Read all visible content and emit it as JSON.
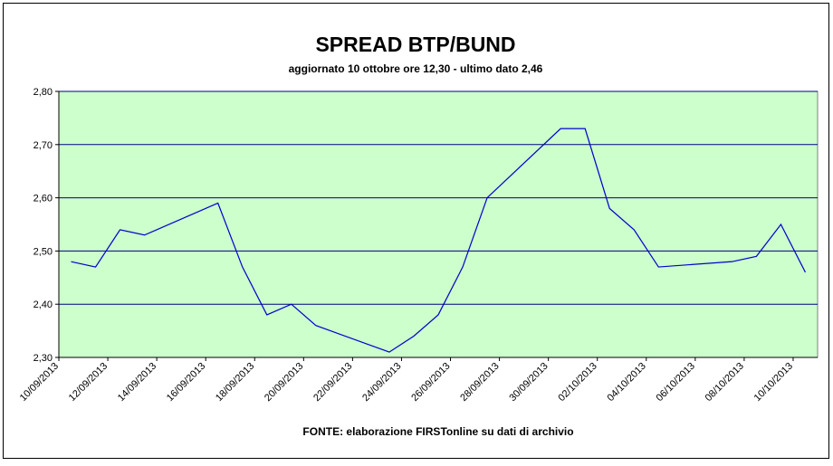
{
  "chart_data": {
    "type": "line",
    "title": "SPREAD BTP/BUND",
    "subtitle": "aggiornato 10 ottobre ore 12,30 - ultimo dato 2,46",
    "source": "FONTE:  elaborazione FIRSTonline su dati di archivio",
    "x": [
      "10/09/2013",
      "11/09/2013",
      "12/09/2013",
      "13/09/2013",
      "16/09/2013",
      "17/09/2013",
      "18/09/2013",
      "19/09/2013",
      "20/09/2013",
      "23/09/2013",
      "24/09/2013",
      "25/09/2013",
      "26/09/2013",
      "27/09/2013",
      "30/09/2013",
      "01/10/2013",
      "02/10/2013",
      "03/10/2013",
      "04/10/2013",
      "07/10/2013",
      "08/10/2013",
      "09/10/2013",
      "10/10/2013"
    ],
    "series": [
      {
        "name": "Spread BTP/BUND",
        "color": "#0000cc",
        "values": [
          2.48,
          2.47,
          2.54,
          2.53,
          2.59,
          2.47,
          2.38,
          2.4,
          2.36,
          2.31,
          2.34,
          2.38,
          2.47,
          2.6,
          2.73,
          2.73,
          2.58,
          2.54,
          2.47,
          2.48,
          2.49,
          2.55,
          2.46
        ]
      }
    ],
    "xlim": [
      "10/09/2013",
      "11/10/2013"
    ],
    "xticks": [
      "10/09/2013",
      "12/09/2013",
      "14/09/2013",
      "16/09/2013",
      "18/09/2013",
      "20/09/2013",
      "22/09/2013",
      "24/09/2013",
      "26/09/2013",
      "28/09/2013",
      "30/09/2013",
      "02/10/2013",
      "04/10/2013",
      "06/10/2013",
      "08/10/2013",
      "10/10/2013"
    ],
    "ylim": [
      2.3,
      2.8
    ],
    "yticks": [
      {
        "value": 2.3,
        "label": "2,30"
      },
      {
        "value": 2.4,
        "label": "2,40"
      },
      {
        "value": 2.5,
        "label": "2,50"
      },
      {
        "value": 2.6,
        "label": "2,60"
      },
      {
        "value": 2.7,
        "label": "2,70"
      },
      {
        "value": 2.8,
        "label": "2,80"
      }
    ],
    "grid": true,
    "plot_background": "#ccffcc",
    "grid_color": "#000080"
  }
}
